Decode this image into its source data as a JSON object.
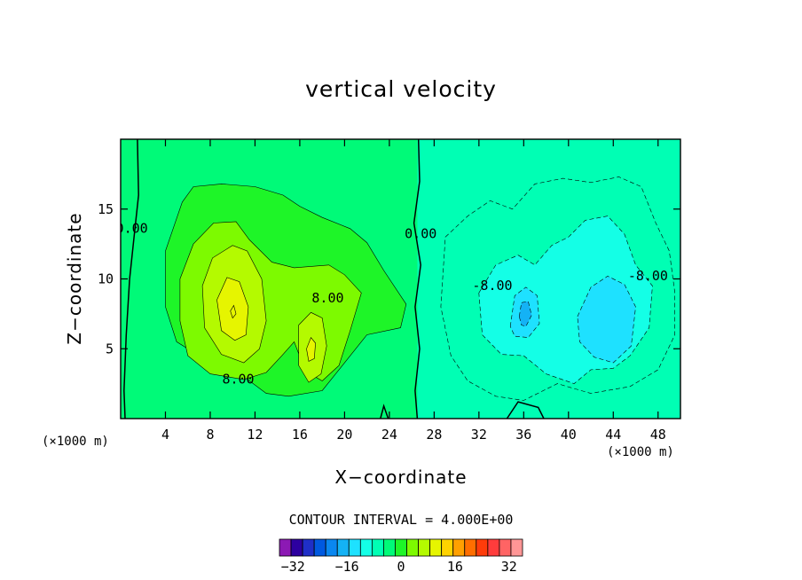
{
  "chart_data": {
    "type": "contour",
    "title": "vertical velocity",
    "xlabel": "X−coordinate",
    "ylabel": "Z−coordinate",
    "x_unit": "(×1000 m)",
    "y_unit": "(×1000 m)",
    "xlim": [
      0,
      50
    ],
    "ylim": [
      0,
      20
    ],
    "xticks": [
      4,
      8,
      12,
      16,
      20,
      24,
      28,
      32,
      36,
      40,
      44,
      48
    ],
    "yticks": [
      5,
      10,
      15
    ],
    "contour_interval_text": "CONTOUR INTERVAL = 4.000E+00",
    "contour_labels": [
      {
        "text": "0.00",
        "x": 1.0,
        "y": 13.6
      },
      {
        "text": "0.00",
        "x": 26.8,
        "y": 13.2
      },
      {
        "text": "8.00",
        "x": 18.5,
        "y": 8.6
      },
      {
        "text": "8.00",
        "x": 10.5,
        "y": 2.8
      },
      {
        "text": "-8.00",
        "x": 33.2,
        "y": 9.5
      },
      {
        "text": "-8.00",
        "x": 47.1,
        "y": 10.2
      }
    ],
    "features": [
      {
        "kind": "updraft",
        "x": 10.0,
        "z": 7.8,
        "max_value": 24
      },
      {
        "kind": "updraft",
        "x": 17.0,
        "z": 5.0,
        "max_value": 20
      },
      {
        "kind": "downdraft",
        "x": 36.0,
        "z": 7.5,
        "min_value": -24
      },
      {
        "kind": "downdraft",
        "x": 43.0,
        "z": 6.0,
        "min_value": -20
      }
    ],
    "colorbar": {
      "min": -36,
      "max": 36,
      "step": 4,
      "tick_labels": [
        "-32",
        "-16",
        "0",
        "16",
        "32"
      ],
      "tick_values": [
        -32,
        -16,
        0,
        16,
        32
      ],
      "colors": [
        "#8c19b4",
        "#2d00a0",
        "#1f2fc8",
        "#0059e0",
        "#0a87f0",
        "#14b2f5",
        "#1ee1ff",
        "#14ffe6",
        "#00ffb4",
        "#00fa78",
        "#1ef528",
        "#7dfa00",
        "#b4fa00",
        "#e6f500",
        "#ffd200",
        "#ffa000",
        "#ff6e00",
        "#ff3c0a",
        "#ff3c3c",
        "#ff6464",
        "#ff9696"
      ]
    }
  }
}
